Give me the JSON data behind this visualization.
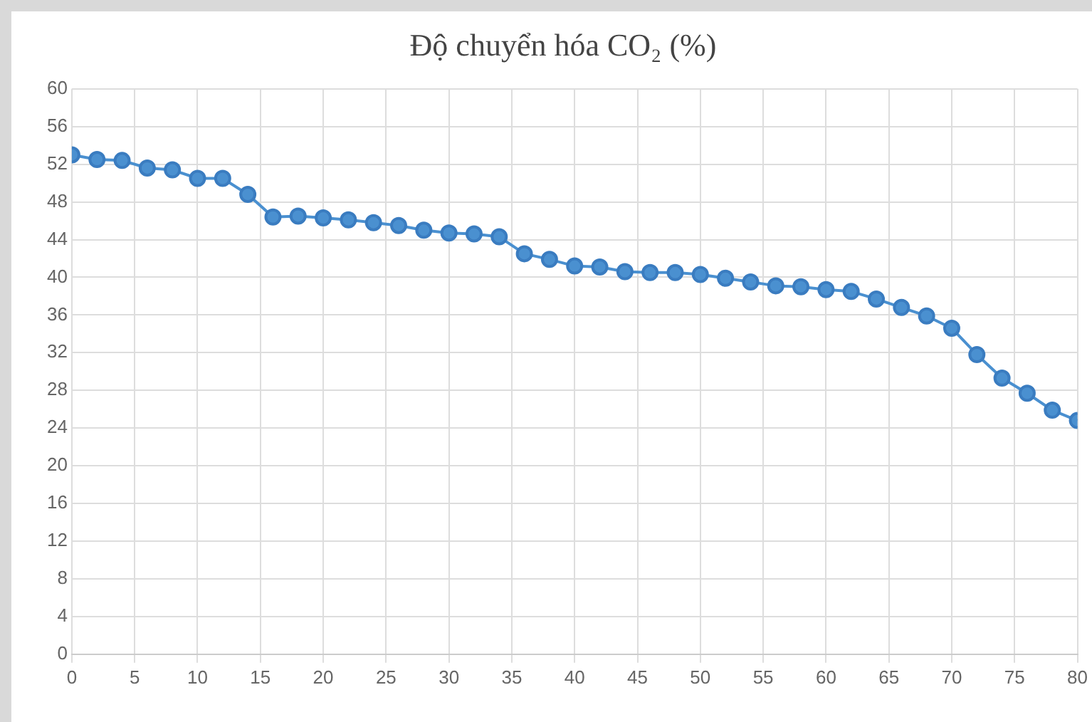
{
  "chart_data": {
    "type": "line",
    "title": "Độ chuyển hóa CO₂ (%)",
    "x": [
      0,
      2,
      4,
      6,
      8,
      10,
      12,
      14,
      16,
      18,
      20,
      22,
      24,
      26,
      28,
      30,
      32,
      34,
      36,
      38,
      40,
      42,
      44,
      46,
      48,
      50,
      52,
      54,
      56,
      58,
      60,
      62,
      64,
      66,
      68,
      70,
      72,
      74,
      76,
      78,
      80
    ],
    "series": [
      {
        "color": "#4a90d0",
        "values": [
          53,
          52.5,
          52.4,
          51.6,
          51.4,
          50.5,
          50.5,
          48.8,
          46.4,
          46.5,
          46.3,
          46.1,
          45.8,
          45.5,
          45,
          44.7,
          44.6,
          44.3,
          42.5,
          41.9,
          41.2,
          41.1,
          40.6,
          40.5,
          40.5,
          40.3,
          39.9,
          39.5,
          39.1,
          39,
          38.7,
          38.5,
          37.7,
          36.8,
          35.9,
          34.6,
          31.8,
          29.3,
          27.7,
          25.9,
          24.8
        ]
      }
    ],
    "xlim": [
      0,
      80
    ],
    "xticks": [
      0,
      5,
      10,
      15,
      20,
      25,
      30,
      35,
      40,
      45,
      50,
      55,
      60,
      65,
      70,
      75,
      80
    ],
    "ylim": [
      0,
      60
    ],
    "yticks": [
      0,
      4,
      8,
      12,
      16,
      20,
      24,
      28,
      32,
      36,
      40,
      44,
      48,
      52,
      56,
      60
    ],
    "grid": true,
    "legend": false,
    "marker": "circle",
    "line_style": "solid"
  }
}
